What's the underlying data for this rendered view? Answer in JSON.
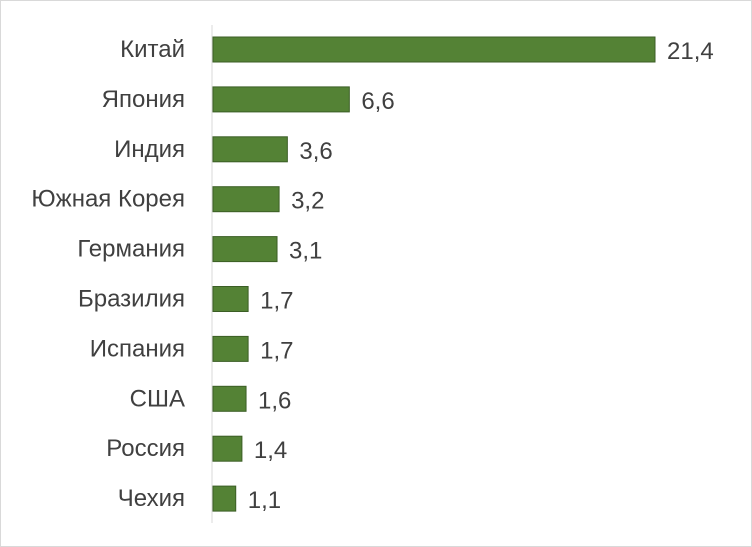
{
  "chart_data": {
    "type": "bar",
    "orientation": "horizontal",
    "title": "",
    "xlabel": "",
    "ylabel": "",
    "categories": [
      "Китай",
      "Япония",
      "Индия",
      "Южная Корея",
      "Германия",
      "Бразилия",
      "Испания",
      "США",
      "Россия",
      "Чехия"
    ],
    "values": [
      21.4,
      6.6,
      3.6,
      3.2,
      3.1,
      1.7,
      1.7,
      1.6,
      1.4,
      1.1
    ],
    "value_labels": [
      "21,4",
      "6,6",
      "3,6",
      "3,2",
      "3,1",
      "1,7",
      "1,7",
      "1,6",
      "1,4",
      "1,1"
    ],
    "xlim": [
      0,
      21.4
    ],
    "grid": false,
    "legend": "none",
    "colors": {
      "bar_fill": "#548235",
      "bar_stroke": "#3b5e25",
      "axis_line": "#d9d9d9",
      "text": "#404040"
    }
  }
}
